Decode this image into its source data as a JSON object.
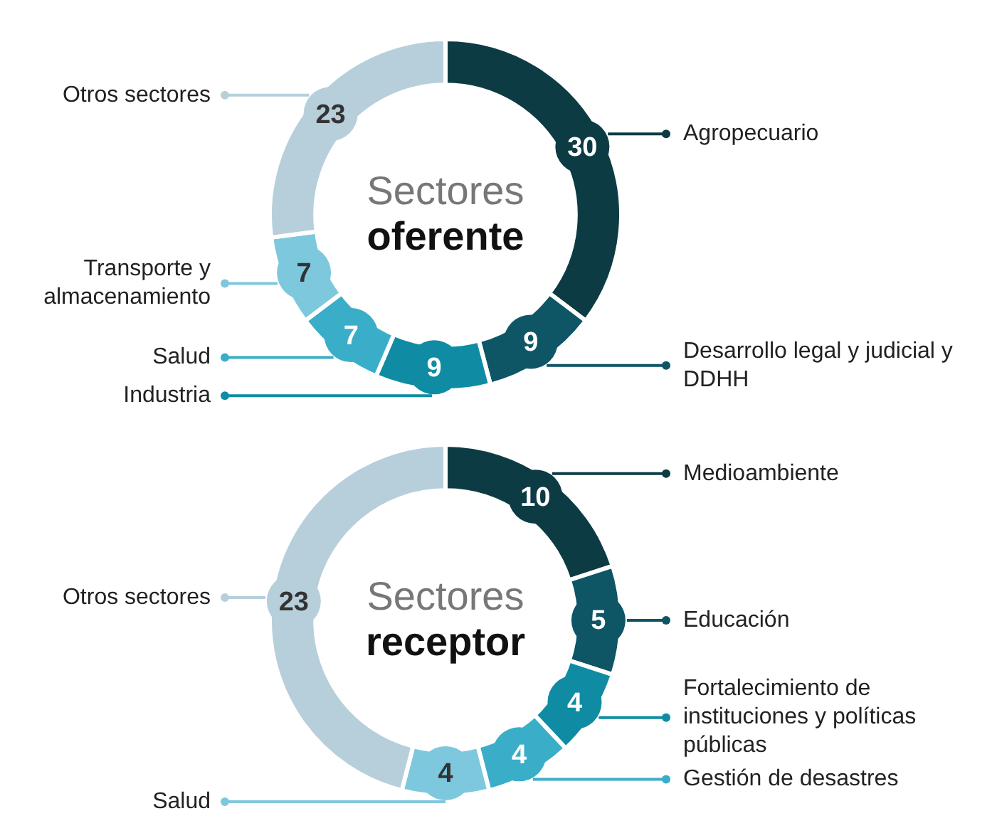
{
  "chart_data": [
    {
      "type": "donut",
      "title": "Sectores",
      "subtitle": "oferente",
      "categories": [
        "Agropecuario",
        "Desarrollo legal y judicial y DDHH",
        "Industria",
        "Salud",
        "Transporte y almacenamiento",
        "Otros sectores"
      ],
      "values": [
        30,
        9,
        9,
        7,
        7,
        23
      ],
      "colors": [
        "#0d3b44",
        "#0e5566",
        "#0f8ca3",
        "#3aaec8",
        "#7ec8de",
        "#b7cfdb"
      ],
      "data_labels": true,
      "legend": "left"
    },
    {
      "type": "donut",
      "title": "Sectores",
      "subtitle": "receptor",
      "categories": [
        "Medioambiente",
        "Educación",
        "Fortalecimiento de instituciones y políticas públicas",
        "Gestión de desastres",
        "Salud",
        "Otros sectores"
      ],
      "values": [
        10,
        5,
        4,
        4,
        4,
        23
      ],
      "colors": [
        "#0d3b44",
        "#0e5566",
        "#0f8ca3",
        "#3aaec8",
        "#7ec8de",
        "#b7cfdb"
      ],
      "data_labels": true,
      "legend": "right"
    }
  ]
}
